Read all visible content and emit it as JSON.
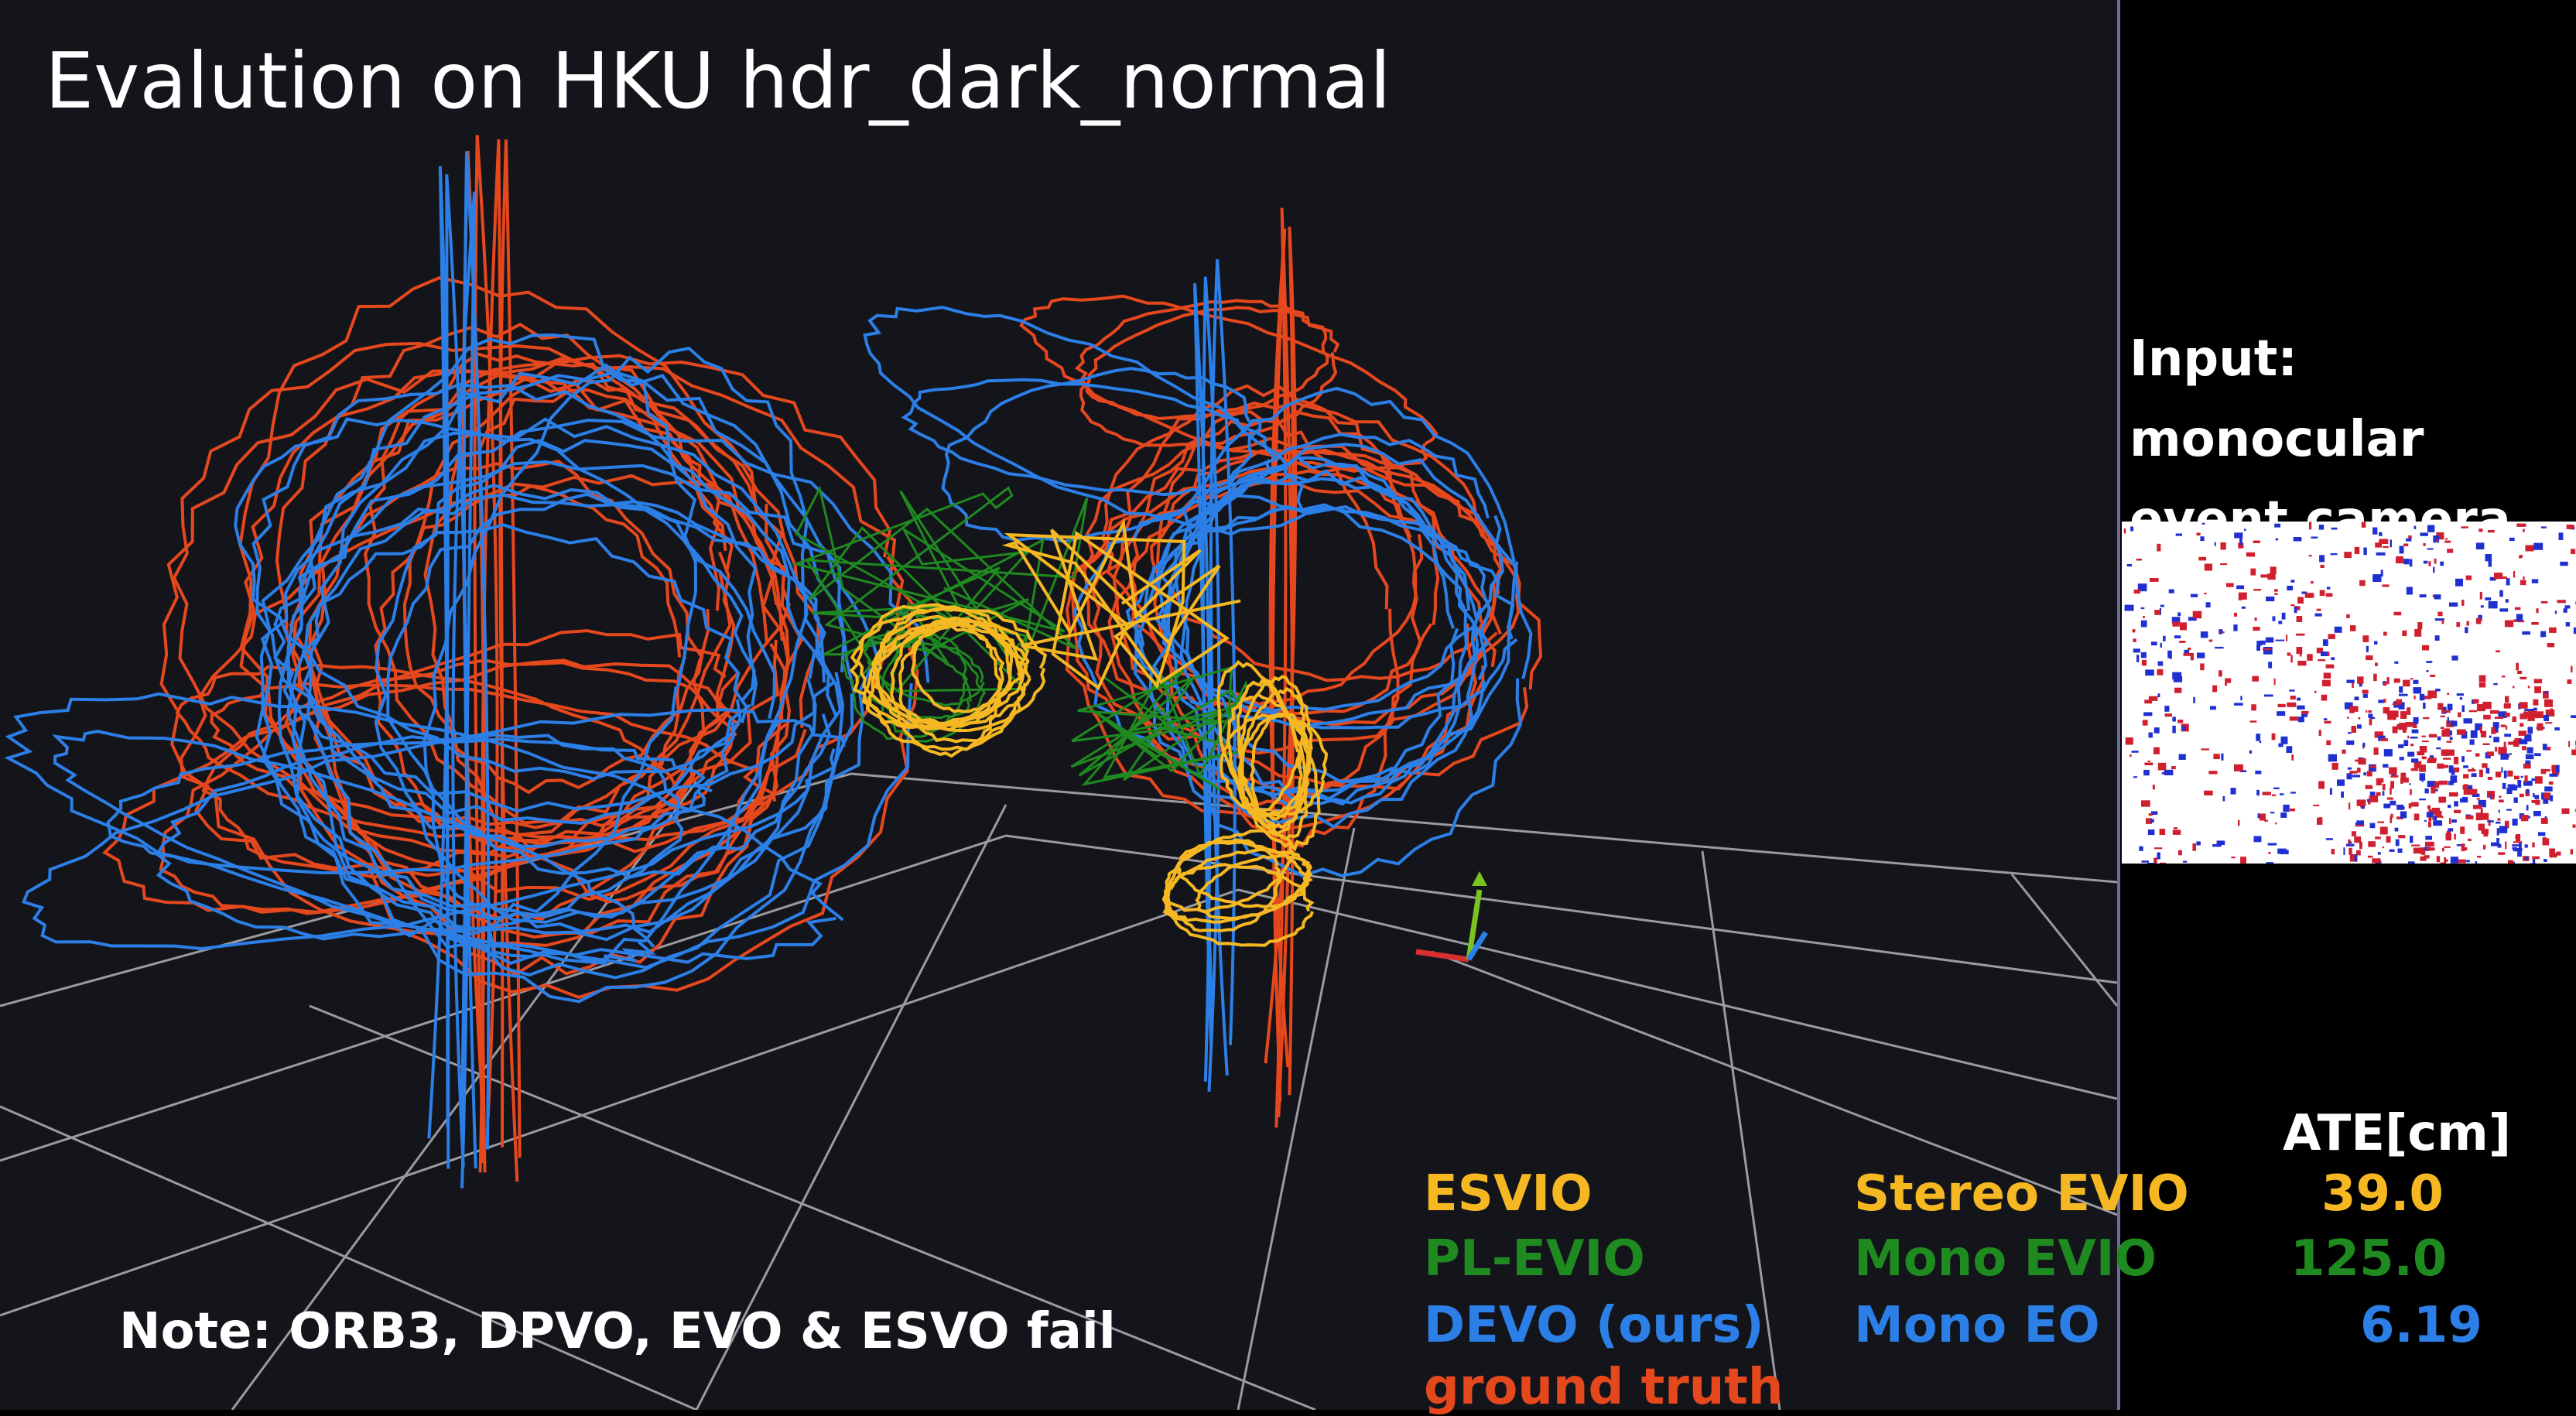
{
  "title": "Evalution on HKU hdr_dark_normal",
  "note": "Note: ORB3, DPVO, EVO & ESVO fail",
  "input_panel": {
    "label_line1": "Input:",
    "label_line2": "monocular",
    "label_line3": "event camera"
  },
  "results": {
    "header": "ATE[cm]",
    "rows": [
      {
        "method": "ESVIO",
        "baseline": "Stereo EVIO",
        "ate": "39.0",
        "color": "#f5b822"
      },
      {
        "method": "PL-EVIO",
        "baseline": "Mono EVIO",
        "ate": "125.0",
        "color": "#1f8a1f"
      },
      {
        "method": "DEVO (ours)",
        "baseline": "Mono EO",
        "ate": "6.19",
        "color": "#2b7fe6"
      }
    ],
    "ground_truth_label": "ground truth",
    "ground_truth_color": "#e6481e"
  }
}
